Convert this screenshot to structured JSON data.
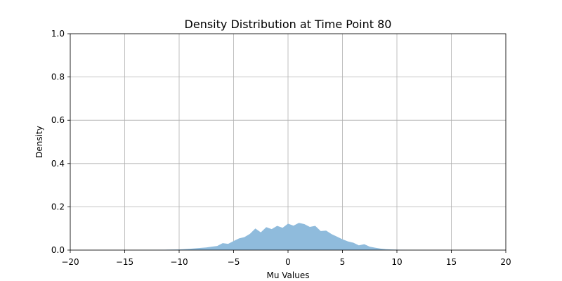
{
  "chart_data": {
    "type": "area",
    "title": "Density Distribution at Time Point 80",
    "xlabel": "Mu Values",
    "ylabel": "Density",
    "xlim": [
      -20,
      20
    ],
    "ylim": [
      0,
      1
    ],
    "xticks": [
      "−20",
      "−15",
      "−10",
      "−5",
      "0",
      "5",
      "10",
      "15",
      "20"
    ],
    "yticks": [
      "0.0",
      "0.2",
      "0.4",
      "0.6",
      "0.8",
      "1.0"
    ],
    "grid": true,
    "colors": {
      "fill": "#8fbbdc"
    },
    "series": [
      {
        "x": [
          -20,
          -14,
          -12,
          -11,
          -10,
          -9,
          -8.5,
          -8,
          -7.5,
          -7,
          -6.5,
          -6,
          -5.5,
          -5,
          -4.5,
          -4,
          -3.5,
          -3,
          -2.5,
          -2,
          -1.5,
          -1,
          -0.5,
          0,
          0.5,
          1,
          1.5,
          2,
          2.5,
          3,
          3.5,
          4,
          4.5,
          5,
          5.5,
          6,
          6.5,
          7,
          7.5,
          8,
          8.5,
          9,
          9.5,
          10,
          11,
          12,
          13,
          20
        ],
        "y": [
          0,
          0,
          0.001,
          0.002,
          0.003,
          0.006,
          0.008,
          0.01,
          0.012,
          0.016,
          0.019,
          0.032,
          0.029,
          0.042,
          0.054,
          0.06,
          0.075,
          0.1,
          0.082,
          0.106,
          0.097,
          0.112,
          0.103,
          0.122,
          0.113,
          0.126,
          0.12,
          0.107,
          0.112,
          0.088,
          0.09,
          0.074,
          0.062,
          0.05,
          0.04,
          0.034,
          0.022,
          0.027,
          0.016,
          0.011,
          0.007,
          0.004,
          0.003,
          0.002,
          0.001,
          0.0005,
          0,
          0
        ]
      }
    ]
  }
}
